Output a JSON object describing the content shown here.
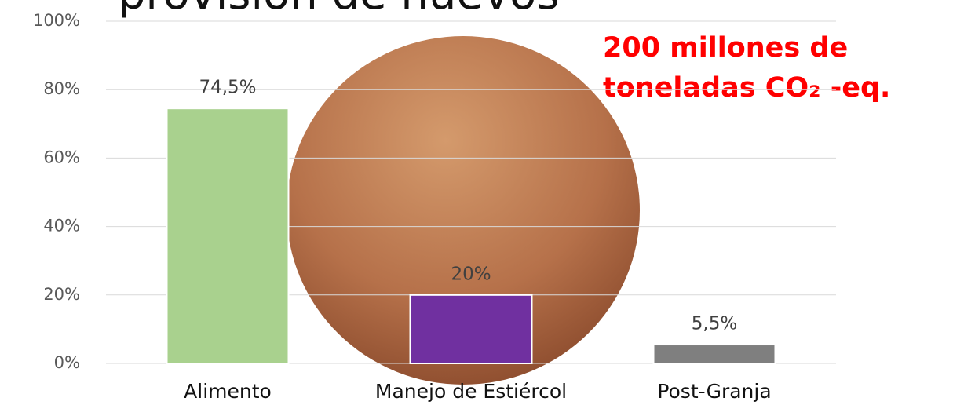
{
  "chart_data": {
    "type": "bar",
    "title": "provisión de huevos",
    "annotation": [
      "200 millones de",
      "toneladas CO₂ -eq."
    ],
    "categories": [
      "Alimento",
      "Manejo de Estiércol",
      "Post-Granja"
    ],
    "values": [
      74.5,
      20,
      5.5
    ],
    "value_labels": [
      "74,5%",
      "20%",
      "5,5%"
    ],
    "colors": [
      "#a9d18e",
      "#7030a0",
      "#7f7f7f"
    ],
    "ylim": [
      0,
      100
    ],
    "yticks": [
      {
        "value": 0,
        "label": "0%"
      },
      {
        "value": 20,
        "label": "20%"
      },
      {
        "value": 40,
        "label": "40%"
      },
      {
        "value": 60,
        "label": "60%"
      },
      {
        "value": 80,
        "label": "80%"
      },
      {
        "value": 100,
        "label": "100%"
      }
    ],
    "grid": true
  }
}
